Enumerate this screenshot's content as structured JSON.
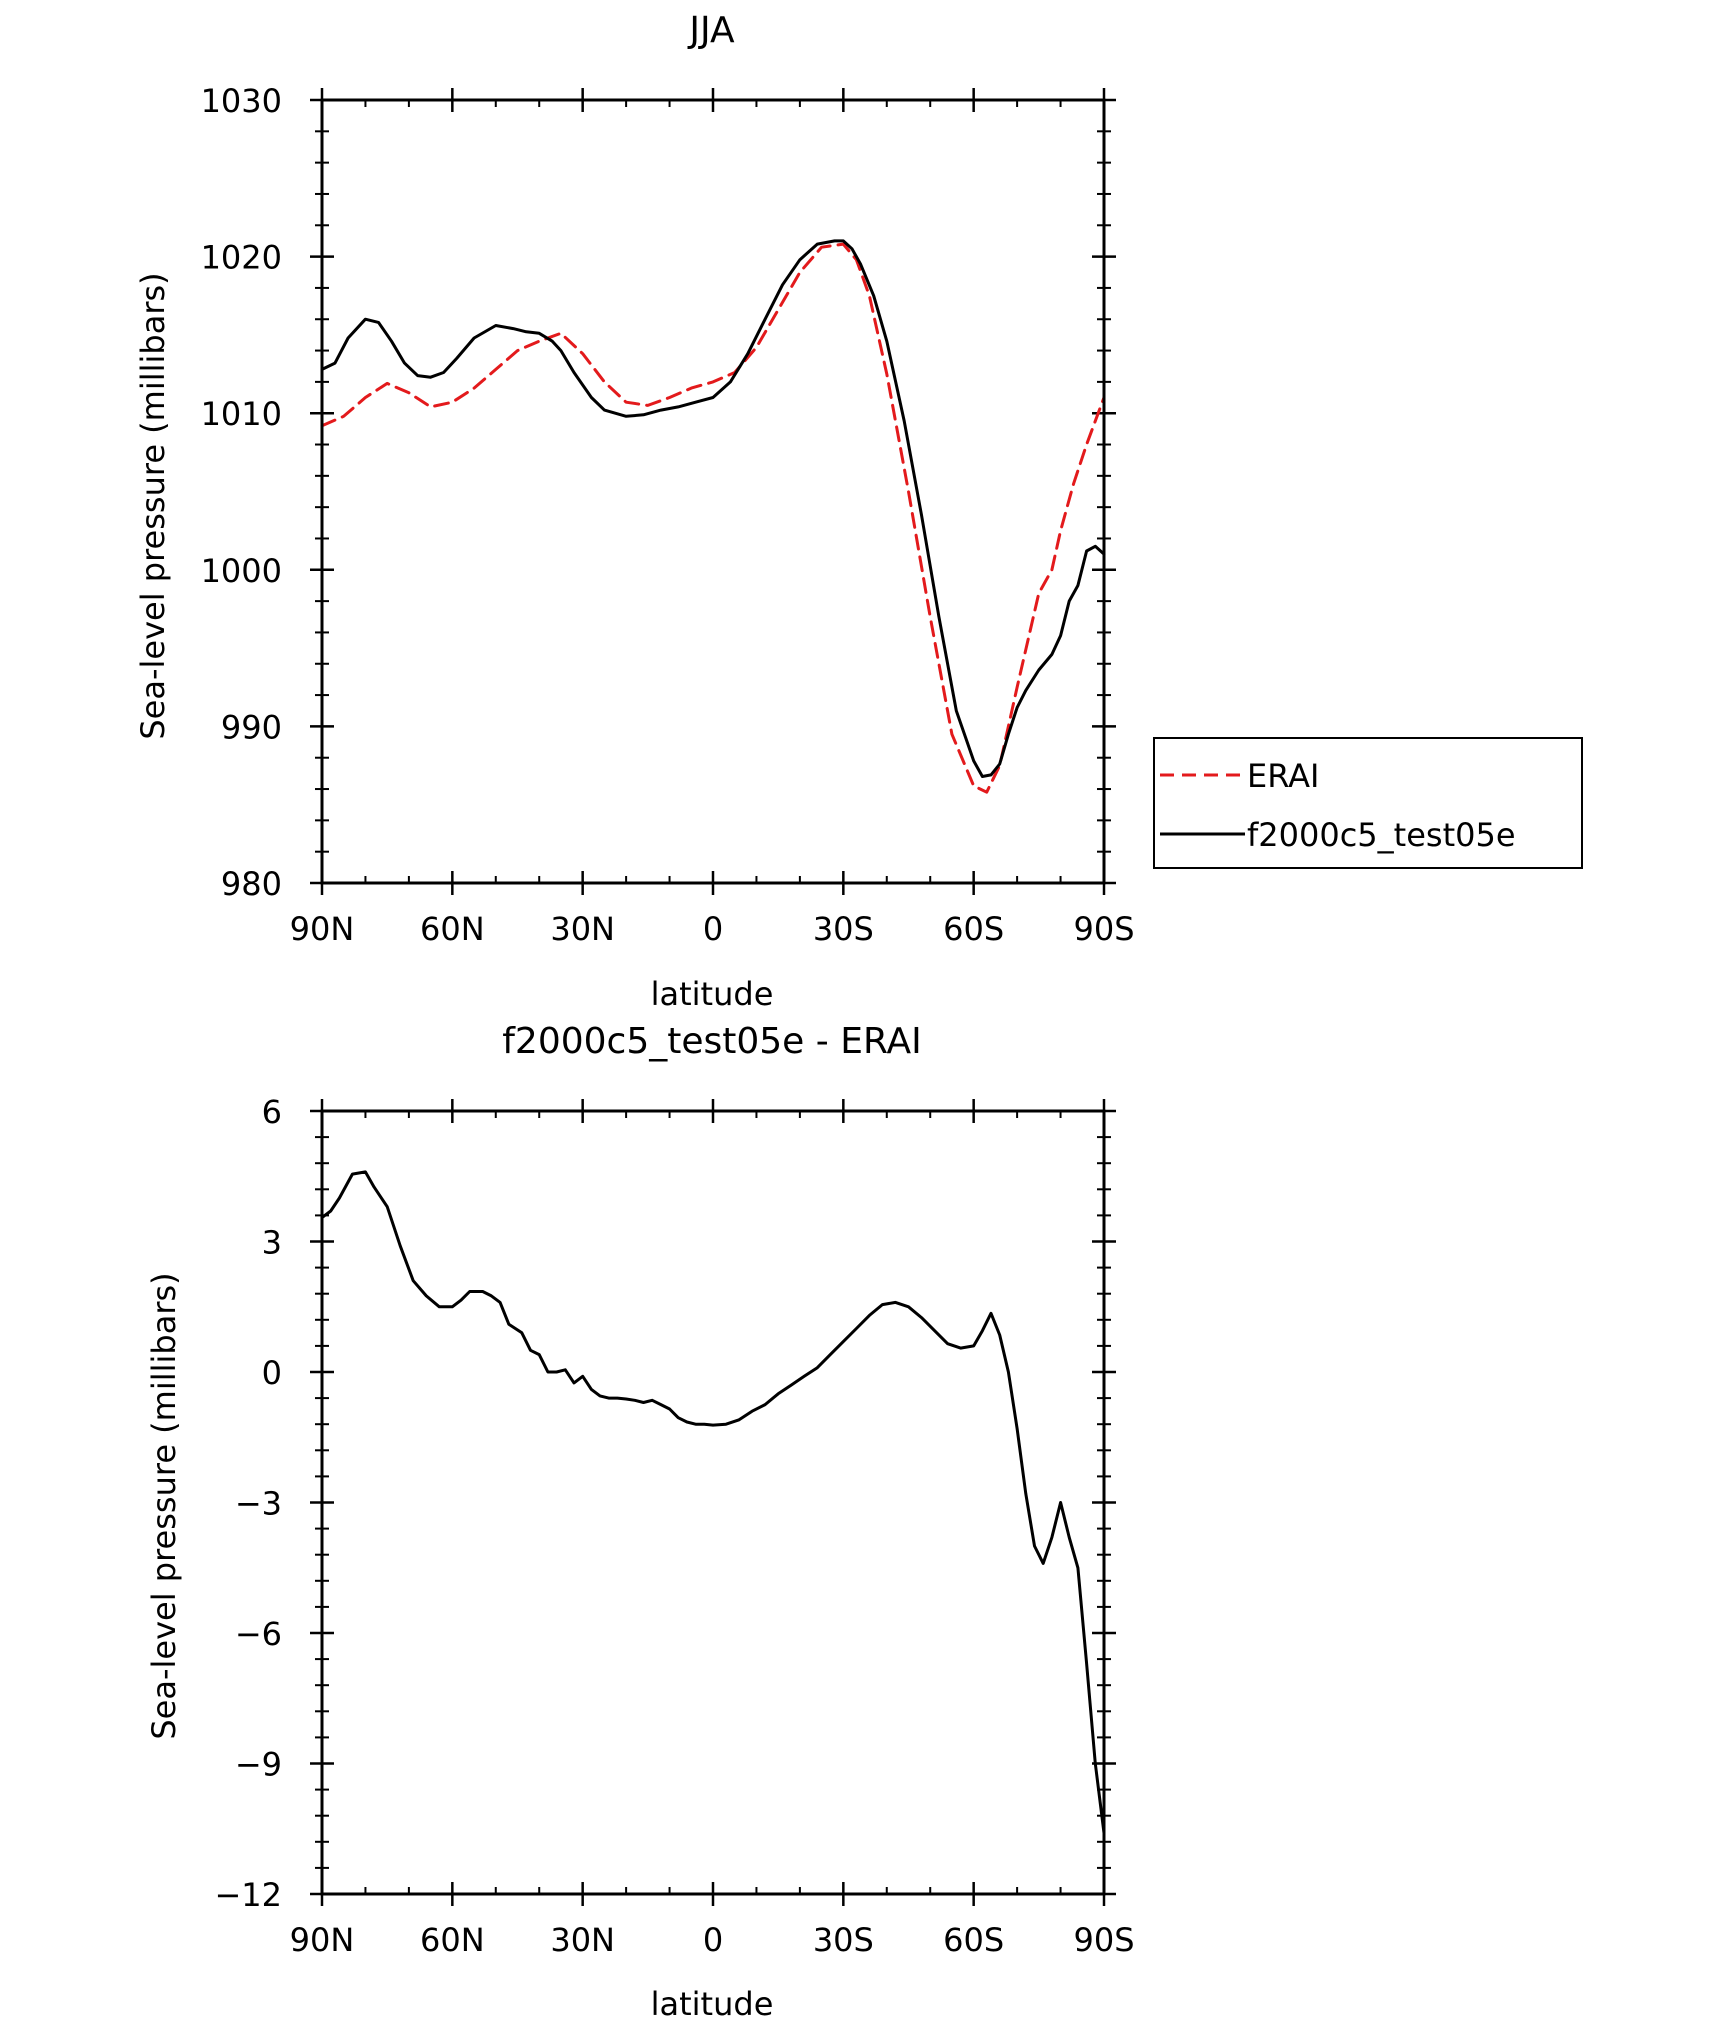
{
  "chart_data": [
    {
      "type": "line",
      "title": "JJA",
      "xlabel": "latitude",
      "ylabel": "Sea-level pressure (millibars)",
      "xlim": [
        90,
        -90
      ],
      "ylim": [
        980,
        1030
      ],
      "x_ticks": [
        {
          "value": 90,
          "label": "90N"
        },
        {
          "value": 60,
          "label": "60N"
        },
        {
          "value": 30,
          "label": "30N"
        },
        {
          "value": 0,
          "label": "0"
        },
        {
          "value": -30,
          "label": "30S"
        },
        {
          "value": -60,
          "label": "60S"
        },
        {
          "value": -90,
          "label": "90S"
        }
      ],
      "y_ticks": [
        {
          "value": 980,
          "label": "980"
        },
        {
          "value": 990,
          "label": "990"
        },
        {
          "value": 1000,
          "label": "1000"
        },
        {
          "value": 1010,
          "label": "1010"
        },
        {
          "value": 1020,
          "label": "1020"
        },
        {
          "value": 1030,
          "label": "1030"
        }
      ],
      "legend": {
        "position": "right",
        "entries": [
          "ERAI",
          "f2000c5_test05e"
        ]
      },
      "series": [
        {
          "name": "ERAI",
          "color": "#e31a1c",
          "dash": "dashed",
          "x": [
            90,
            85,
            80,
            75,
            70,
            65,
            60,
            55,
            50,
            45,
            40,
            35,
            30,
            25,
            20,
            15,
            10,
            5,
            0,
            -5,
            -10,
            -15,
            -20,
            -25,
            -30,
            -33,
            -36,
            -40,
            -45,
            -50,
            -55,
            -60,
            -63,
            -66,
            -70,
            -75,
            -78,
            -80,
            -83,
            -86,
            -90
          ],
          "values": [
            1009.2,
            1009.8,
            1011.0,
            1011.9,
            1011.3,
            1010.4,
            1010.7,
            1011.6,
            1012.8,
            1014.0,
            1014.6,
            1015.1,
            1013.8,
            1012.0,
            1010.7,
            1010.5,
            1011.0,
            1011.6,
            1012.0,
            1012.6,
            1014.2,
            1016.6,
            1019.0,
            1020.6,
            1020.8,
            1019.8,
            1017.5,
            1012.5,
            1005.0,
            997.0,
            989.5,
            986.2,
            985.8,
            987.5,
            992.5,
            998.5,
            1000.0,
            1002.5,
            1005.5,
            1008.0,
            1011.0
          ]
        },
        {
          "name": "f2000c5_test05e",
          "color": "#000000",
          "dash": "solid",
          "x": [
            90,
            87,
            84,
            80,
            77,
            74,
            71,
            68,
            65,
            62,
            59,
            55,
            50,
            46,
            43,
            40,
            37,
            35,
            32,
            28,
            25,
            20,
            16,
            12,
            8,
            4,
            0,
            -4,
            -8,
            -12,
            -16,
            -20,
            -24,
            -28,
            -30,
            -32,
            -34,
            -37,
            -40,
            -44,
            -48,
            -52,
            -56,
            -60,
            -62,
            -64,
            -66,
            -68,
            -70,
            -72,
            -75,
            -78,
            -80,
            -82,
            -84,
            -86,
            -88,
            -90
          ],
          "values": [
            1012.8,
            1013.2,
            1014.8,
            1016.0,
            1015.8,
            1014.6,
            1013.2,
            1012.4,
            1012.3,
            1012.6,
            1013.5,
            1014.8,
            1015.6,
            1015.4,
            1015.2,
            1015.1,
            1014.6,
            1014.0,
            1012.6,
            1011.0,
            1010.2,
            1009.8,
            1009.9,
            1010.2,
            1010.4,
            1010.7,
            1011.0,
            1012.0,
            1013.8,
            1016.0,
            1018.2,
            1019.8,
            1020.8,
            1021.0,
            1021.0,
            1020.5,
            1019.5,
            1017.5,
            1014.6,
            1009.5,
            1003.5,
            997.0,
            991.0,
            987.8,
            986.8,
            986.9,
            987.6,
            989.5,
            991.2,
            992.3,
            993.6,
            994.6,
            995.8,
            998.0,
            999.0,
            1001.2,
            1001.5,
            1001.0
          ]
        }
      ]
    },
    {
      "type": "line",
      "title": "f2000c5_test05e - ERAI",
      "xlabel": "latitude",
      "ylabel": "Sea-level pressure (millibars)",
      "xlim": [
        90,
        -90
      ],
      "ylim": [
        -12,
        6
      ],
      "x_ticks": [
        {
          "value": 90,
          "label": "90N"
        },
        {
          "value": 60,
          "label": "60N"
        },
        {
          "value": 30,
          "label": "30N"
        },
        {
          "value": 0,
          "label": "0"
        },
        {
          "value": -30,
          "label": "30S"
        },
        {
          "value": -60,
          "label": "60S"
        },
        {
          "value": -90,
          "label": "90S"
        }
      ],
      "y_ticks": [
        {
          "value": -12,
          "label": "−12"
        },
        {
          "value": -9,
          "label": "−9"
        },
        {
          "value": -6,
          "label": "−6"
        },
        {
          "value": -3,
          "label": "−3"
        },
        {
          "value": 0,
          "label": "0"
        },
        {
          "value": 3,
          "label": "3"
        },
        {
          "value": 6,
          "label": "6"
        }
      ],
      "series": [
        {
          "name": "f2000c5_test05e - ERAI",
          "color": "#000000",
          "dash": "solid",
          "x": [
            90,
            88,
            86,
            83,
            80,
            78,
            75,
            72,
            69,
            66,
            63,
            60,
            58,
            56,
            53,
            51,
            49,
            47,
            44,
            42,
            40,
            38,
            36,
            34,
            32,
            30,
            28,
            26,
            24,
            22,
            20,
            18,
            16,
            14,
            12,
            10,
            8,
            6,
            4,
            2,
            0,
            -3,
            -6,
            -9,
            -12,
            -15,
            -18,
            -21,
            -24,
            -27,
            -30,
            -33,
            -36,
            -39,
            -42,
            -45,
            -48,
            -51,
            -54,
            -57,
            -60,
            -62,
            -64,
            -66,
            -68,
            -70,
            -72,
            -74,
            -76,
            -78,
            -80,
            -82,
            -84,
            -86,
            -88,
            -90
          ],
          "values": [
            3.55,
            3.7,
            4.0,
            4.55,
            4.6,
            4.25,
            3.8,
            2.9,
            2.1,
            1.75,
            1.5,
            1.5,
            1.65,
            1.85,
            1.85,
            1.75,
            1.6,
            1.1,
            0.9,
            0.5,
            0.4,
            0.0,
            0.0,
            0.05,
            -0.25,
            -0.1,
            -0.4,
            -0.55,
            -0.6,
            -0.6,
            -0.62,
            -0.65,
            -0.7,
            -0.65,
            -0.75,
            -0.85,
            -1.05,
            -1.15,
            -1.2,
            -1.2,
            -1.22,
            -1.2,
            -1.1,
            -0.9,
            -0.75,
            -0.5,
            -0.3,
            -0.1,
            0.1,
            0.4,
            0.7,
            1.0,
            1.3,
            1.55,
            1.6,
            1.5,
            1.25,
            0.95,
            0.65,
            0.55,
            0.6,
            0.95,
            1.35,
            0.85,
            0.0,
            -1.3,
            -2.8,
            -4.0,
            -4.4,
            -3.8,
            -3.0,
            -3.8,
            -4.5,
            -6.7,
            -9.0,
            -10.6
          ]
        }
      ]
    }
  ]
}
